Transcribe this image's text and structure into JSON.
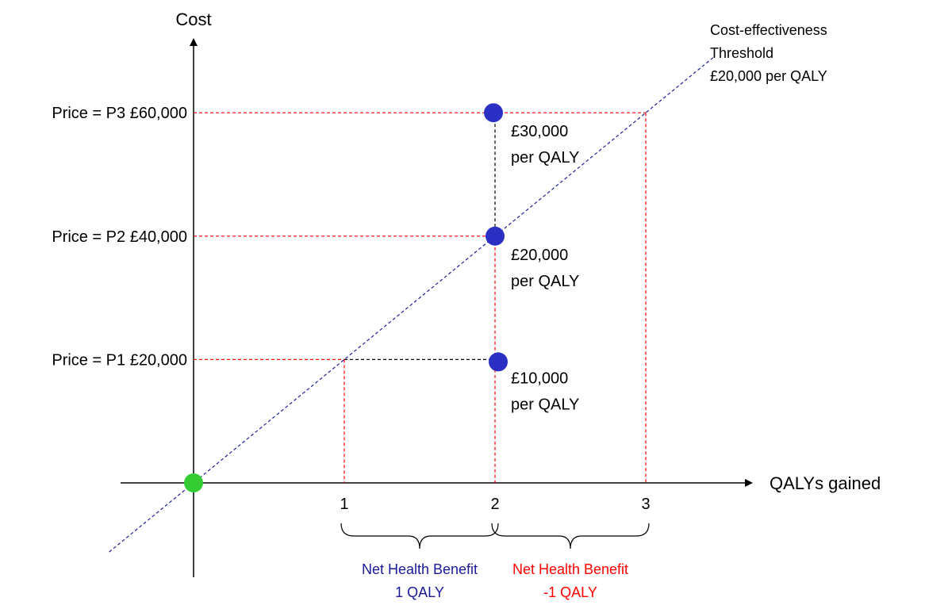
{
  "axes": {
    "y_label": "Cost",
    "x_label": "QALYs gained",
    "x_ticks": [
      "1",
      "2",
      "3"
    ]
  },
  "threshold": {
    "line1": "Cost-effectiveness",
    "line2": "Threshold",
    "line3": "£20,000 per QALY"
  },
  "prices": [
    {
      "label": "Price = P3 £60,000",
      "value": 60000
    },
    {
      "label": "Price = P2 £40,000",
      "value": 40000
    },
    {
      "label": "Price = P1 £20,000",
      "value": 20000
    }
  ],
  "points": [
    {
      "qaly": 2,
      "cost": 60000,
      "label1": "£30,000",
      "label2": "per QALY"
    },
    {
      "qaly": 2,
      "cost": 40000,
      "label1": "£20,000",
      "label2": "per QALY"
    },
    {
      "qaly": 2,
      "cost": 20000,
      "label1": "£10,000",
      "label2": "per QALY"
    }
  ],
  "origin_point": {
    "qaly": 0,
    "cost": 0
  },
  "benefits": [
    {
      "line1": "Net Health Benefit",
      "line2": "1 QALY",
      "from": 1,
      "to": 2
    },
    {
      "line1": "Net Health Benefit",
      "line2": "-1 QALY",
      "from": 2,
      "to": 3
    }
  ],
  "colors": {
    "point": "#2b2fc4",
    "origin": "#33cc33",
    "threshold_line": "#1f1f99",
    "guide_red": "#ff0000",
    "guide_black": "#000000",
    "benefit_blue": "#1a1a99",
    "benefit_red": "#ff0000"
  }
}
